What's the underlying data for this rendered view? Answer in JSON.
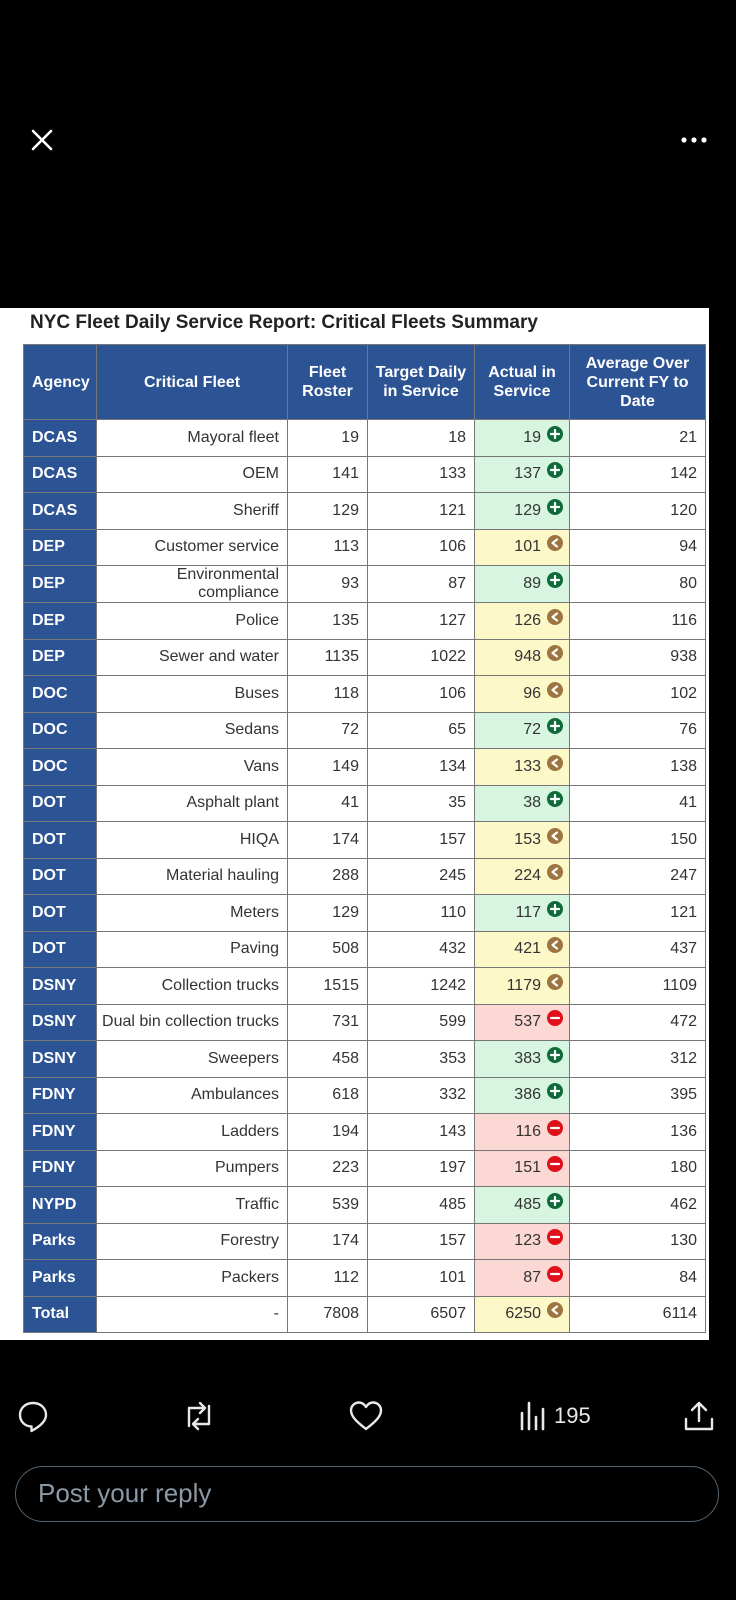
{
  "report": {
    "title": "NYC Fleet Daily Service Report: Critical Fleets Summary",
    "headers": [
      "Agency",
      "Critical Fleet",
      "Fleet Roster",
      "Target Daily in Service",
      "Actual in Service",
      "Average Over Current FY to Date"
    ],
    "rows": [
      {
        "agency": "DCAS",
        "fleet": "Mayoral fleet",
        "roster": "19",
        "target": "18",
        "actual": "19",
        "status": "above",
        "avg": "21"
      },
      {
        "agency": "DCAS",
        "fleet": "OEM",
        "roster": "141",
        "target": "133",
        "actual": "137",
        "status": "above",
        "avg": "142"
      },
      {
        "agency": "DCAS",
        "fleet": "Sheriff",
        "roster": "129",
        "target": "121",
        "actual": "129",
        "status": "above",
        "avg": "120"
      },
      {
        "agency": "DEP",
        "fleet": "Customer service",
        "roster": "113",
        "target": "106",
        "actual": "101",
        "status": "near",
        "avg": "94"
      },
      {
        "agency": "DEP",
        "fleet": "Environmental compliance",
        "roster": "93",
        "target": "87",
        "actual": "89",
        "status": "above",
        "avg": "80"
      },
      {
        "agency": "DEP",
        "fleet": "Police",
        "roster": "135",
        "target": "127",
        "actual": "126",
        "status": "near",
        "avg": "116"
      },
      {
        "agency": "DEP",
        "fleet": "Sewer and water",
        "roster": "1135",
        "target": "1022",
        "actual": "948",
        "status": "near",
        "avg": "938"
      },
      {
        "agency": "DOC",
        "fleet": "Buses",
        "roster": "118",
        "target": "106",
        "actual": "96",
        "status": "near",
        "avg": "102"
      },
      {
        "agency": "DOC",
        "fleet": "Sedans",
        "roster": "72",
        "target": "65",
        "actual": "72",
        "status": "above",
        "avg": "76"
      },
      {
        "agency": "DOC",
        "fleet": "Vans",
        "roster": "149",
        "target": "134",
        "actual": "133",
        "status": "near",
        "avg": "138"
      },
      {
        "agency": "DOT",
        "fleet": "Asphalt plant",
        "roster": "41",
        "target": "35",
        "actual": "38",
        "status": "above",
        "avg": "41"
      },
      {
        "agency": "DOT",
        "fleet": "HIQA",
        "roster": "174",
        "target": "157",
        "actual": "153",
        "status": "near",
        "avg": "150"
      },
      {
        "agency": "DOT",
        "fleet": "Material hauling",
        "roster": "288",
        "target": "245",
        "actual": "224",
        "status": "near",
        "avg": "247"
      },
      {
        "agency": "DOT",
        "fleet": "Meters",
        "roster": "129",
        "target": "110",
        "actual": "117",
        "status": "above",
        "avg": "121"
      },
      {
        "agency": "DOT",
        "fleet": "Paving",
        "roster": "508",
        "target": "432",
        "actual": "421",
        "status": "near",
        "avg": "437"
      },
      {
        "agency": "DSNY",
        "fleet": "Collection trucks",
        "roster": "1515",
        "target": "1242",
        "actual": "1179",
        "status": "near",
        "avg": "1109"
      },
      {
        "agency": "DSNY",
        "fleet": "Dual bin collection trucks",
        "roster": "731",
        "target": "599",
        "actual": "537",
        "status": "below",
        "avg": "472"
      },
      {
        "agency": "DSNY",
        "fleet": "Sweepers",
        "roster": "458",
        "target": "353",
        "actual": "383",
        "status": "above",
        "avg": "312"
      },
      {
        "agency": "FDNY",
        "fleet": "Ambulances",
        "roster": "618",
        "target": "332",
        "actual": "386",
        "status": "above",
        "avg": "395"
      },
      {
        "agency": "FDNY",
        "fleet": "Ladders",
        "roster": "194",
        "target": "143",
        "actual": "116",
        "status": "below",
        "avg": "136"
      },
      {
        "agency": "FDNY",
        "fleet": "Pumpers",
        "roster": "223",
        "target": "197",
        "actual": "151",
        "status": "below",
        "avg": "180"
      },
      {
        "agency": "NYPD",
        "fleet": "Traffic",
        "roster": "539",
        "target": "485",
        "actual": "485",
        "status": "above",
        "avg": "462"
      },
      {
        "agency": "Parks",
        "fleet": "Forestry",
        "roster": "174",
        "target": "157",
        "actual": "123",
        "status": "below",
        "avg": "130"
      },
      {
        "agency": "Parks",
        "fleet": "Packers",
        "roster": "112",
        "target": "101",
        "actual": "87",
        "status": "below",
        "avg": "84"
      },
      {
        "agency": "Total",
        "fleet": "-",
        "roster": "7808",
        "target": "6507",
        "actual": "6250",
        "status": "near",
        "avg": "6114"
      }
    ]
  },
  "colors": {
    "header_blue": "#2c5394",
    "status_above": "#d8f5e1",
    "status_near": "#fdf8c8",
    "status_below": "#fbd8d4",
    "icon_above": "#0f6b3a",
    "icon_near": "#9c7540",
    "icon_below": "#e0101a"
  },
  "icons": {
    "close": "close-icon",
    "more": "more-icon",
    "reply": "reply-icon",
    "repost": "repost-icon",
    "like": "heart-icon",
    "views": "views-icon",
    "share": "share-icon"
  },
  "actions": {
    "views_count": "195"
  },
  "reply": {
    "placeholder": "Post your reply"
  }
}
